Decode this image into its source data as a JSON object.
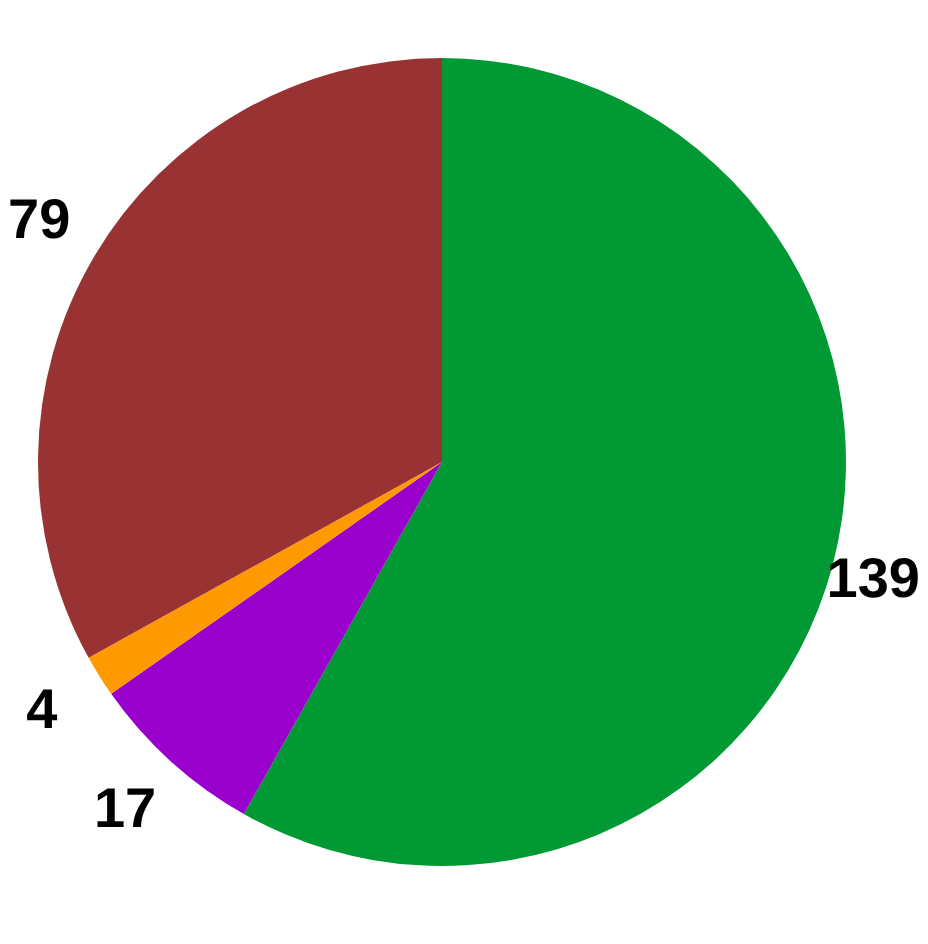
{
  "chart_data": {
    "type": "pie",
    "categories": [
      null,
      null,
      null,
      null
    ],
    "values": [
      139,
      17,
      4,
      79
    ],
    "colors": [
      "#009933",
      "#9900cc",
      "#ff9900",
      "#993333"
    ],
    "data_labels": true,
    "legend": false
  }
}
